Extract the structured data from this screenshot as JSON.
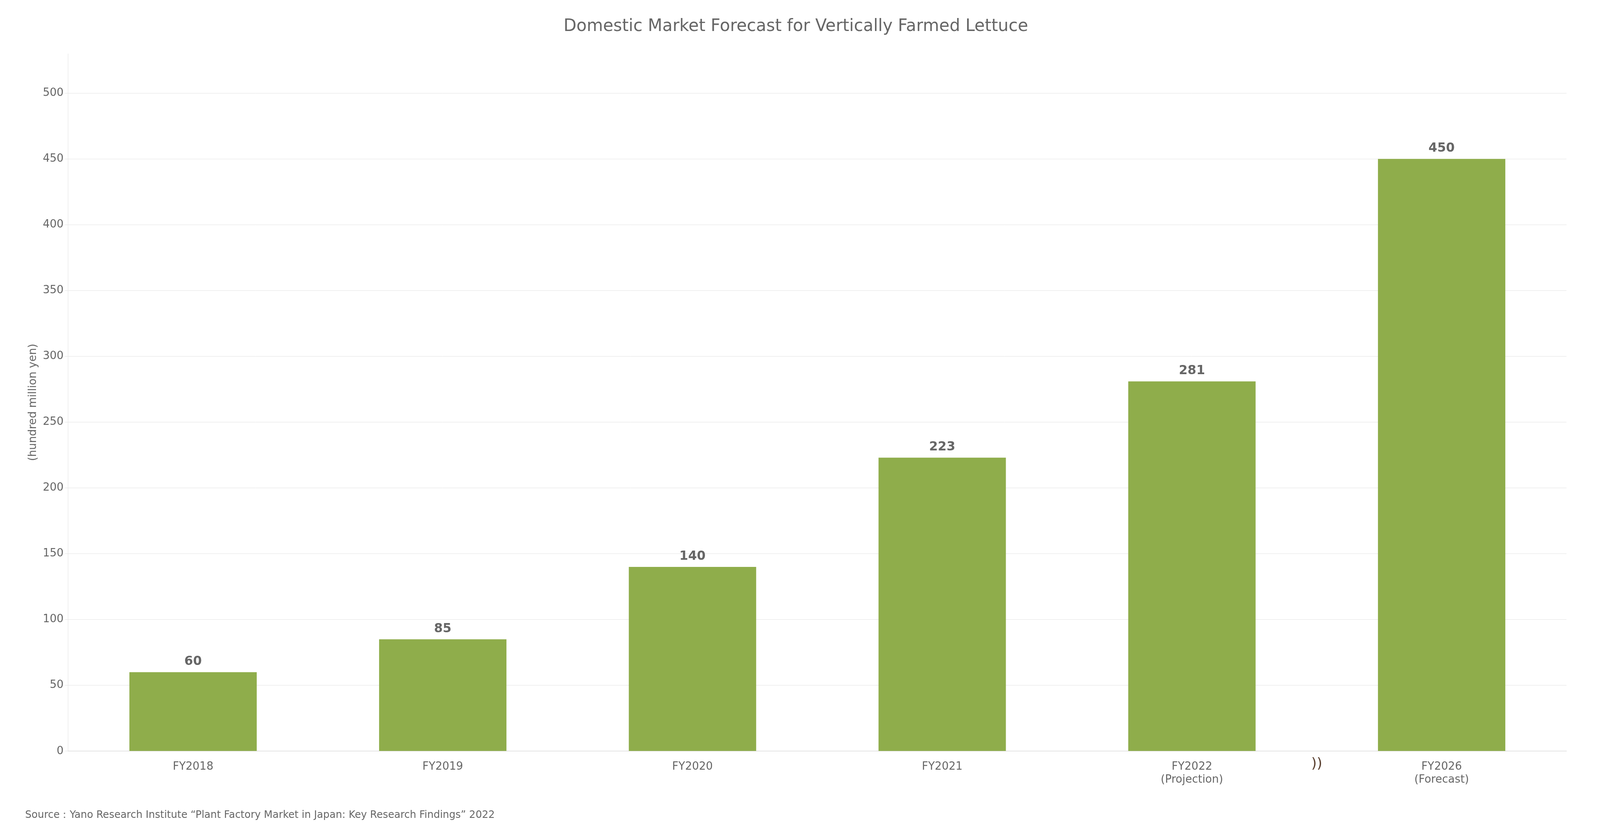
{
  "chart_data": {
    "type": "bar",
    "title": "Domestic Market Forecast for Vertically Farmed Lettuce",
    "ylabel": "(hundred million yen)",
    "categories": [
      "FY2018",
      "FY2019",
      "FY2020",
      "FY2021",
      "FY2022\n(Projection)",
      "FY2026\n(Forecast)"
    ],
    "values": [
      60,
      85,
      140,
      223,
      281,
      450
    ],
    "color": "#8fad4b",
    "ylim": [
      0,
      530
    ],
    "yticks": [
      0,
      50,
      100,
      150,
      200,
      250,
      300,
      350,
      400,
      450,
      500
    ],
    "grid": true,
    "data_labels": true,
    "annotations": [
      "))"
    ],
    "source": "Source：Yano Research Institute “Plant Factory Market in Japan: Key Research Findings” 2022"
  }
}
